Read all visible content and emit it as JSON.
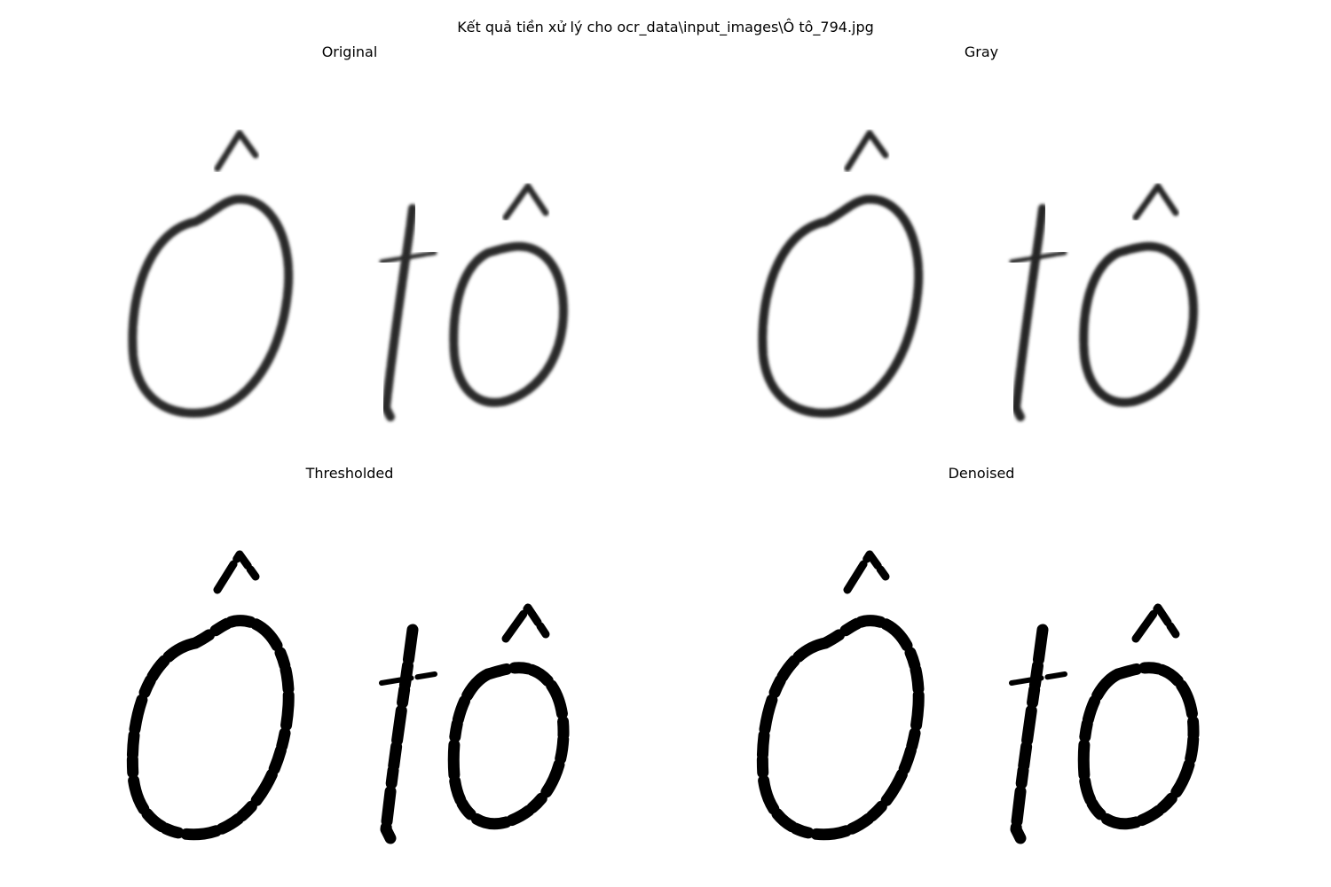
{
  "figure": {
    "suptitle": "Kết quả tiền xử lý cho ocr_data\\input_images\\Ô tô_794.jpg"
  },
  "panels": [
    {
      "title": "Original",
      "style": "soft",
      "ink": "#2a2a2a"
    },
    {
      "title": "Gray",
      "style": "soft",
      "ink": "#262626"
    },
    {
      "title": "Thresholded",
      "style": "binary",
      "ink": "#000000"
    },
    {
      "title": "Denoised",
      "style": "binary",
      "ink": "#000000"
    }
  ]
}
